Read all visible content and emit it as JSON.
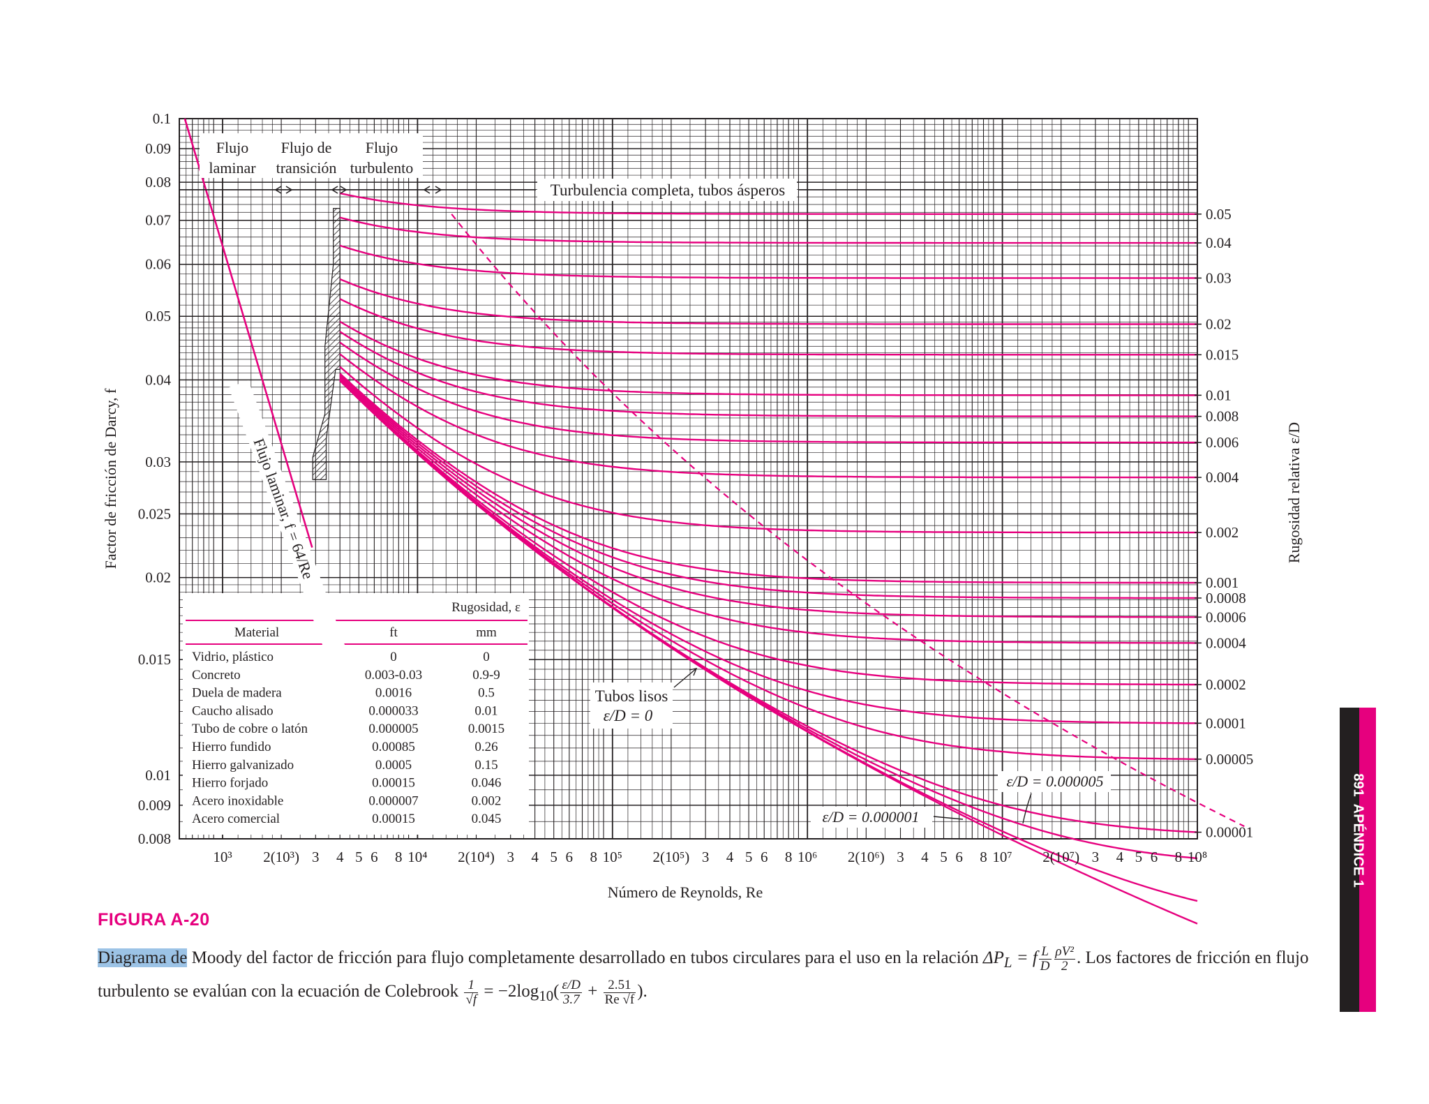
{
  "chart_data": {
    "type": "line",
    "x_scale": "log",
    "y_scale": "log",
    "xlim": [
      600,
      100000000
    ],
    "ylim": [
      0.008,
      0.1
    ],
    "grid": true,
    "xlabel": "Número de Reynolds, Re",
    "ylabel": "Factor de fricción de Darcy, f",
    "y2label": "Rugosidad relativa ε/D",
    "y_ticks": [
      "0.1",
      "0.09",
      "0.08",
      "0.07",
      "0.06",
      "0.05",
      "0.04",
      "0.03",
      "0.025",
      "0.02",
      "0.015",
      "0.01",
      "0.009",
      "0.008"
    ],
    "x_ticks": [
      {
        "v": 1000,
        "t": "10³"
      },
      {
        "v": 2000,
        "t": "2(10³)"
      },
      {
        "v": 3000,
        "t": "3"
      },
      {
        "v": 4000,
        "t": "4"
      },
      {
        "v": 5000,
        "t": "5"
      },
      {
        "v": 6000,
        "t": "6"
      },
      {
        "v": 8000,
        "t": "8"
      },
      {
        "v": 10000,
        "t": "10⁴"
      },
      {
        "v": 20000,
        "t": "2(10⁴)"
      },
      {
        "v": 30000,
        "t": "3"
      },
      {
        "v": 40000,
        "t": "4"
      },
      {
        "v": 50000,
        "t": "5"
      },
      {
        "v": 60000,
        "t": "6"
      },
      {
        "v": 80000,
        "t": "8"
      },
      {
        "v": 100000,
        "t": "10⁵"
      },
      {
        "v": 200000,
        "t": "2(10⁵)"
      },
      {
        "v": 300000,
        "t": "3"
      },
      {
        "v": 400000,
        "t": "4"
      },
      {
        "v": 500000,
        "t": "5"
      },
      {
        "v": 600000,
        "t": "6"
      },
      {
        "v": 800000,
        "t": "8"
      },
      {
        "v": 1000000,
        "t": "10⁶"
      },
      {
        "v": 2000000,
        "t": "2(10⁶)"
      },
      {
        "v": 3000000,
        "t": "3"
      },
      {
        "v": 4000000,
        "t": "4"
      },
      {
        "v": 5000000,
        "t": "5"
      },
      {
        "v": 6000000,
        "t": "6"
      },
      {
        "v": 8000000,
        "t": "8"
      },
      {
        "v": 10000000,
        "t": "10⁷"
      },
      {
        "v": 20000000,
        "t": "2(10⁷)"
      },
      {
        "v": 30000000,
        "t": "3"
      },
      {
        "v": 40000000,
        "t": "4"
      },
      {
        "v": 50000000,
        "t": "5"
      },
      {
        "v": 60000000,
        "t": "6"
      },
      {
        "v": 80000000,
        "t": "8"
      },
      {
        "v": 100000000,
        "t": "10⁸"
      }
    ],
    "roughness_curves": [
      {
        "label": "0.05",
        "eD": 0.05
      },
      {
        "label": "0.04",
        "eD": 0.04
      },
      {
        "label": "0.03",
        "eD": 0.03
      },
      {
        "label": "0.02",
        "eD": 0.02
      },
      {
        "label": "0.015",
        "eD": 0.015
      },
      {
        "label": "0.01",
        "eD": 0.01
      },
      {
        "label": "0.008",
        "eD": 0.008
      },
      {
        "label": "0.006",
        "eD": 0.006
      },
      {
        "label": "0.004",
        "eD": 0.004
      },
      {
        "label": "0.002",
        "eD": 0.002
      },
      {
        "label": "0.001",
        "eD": 0.001
      },
      {
        "label": "0.0008",
        "eD": 0.0008
      },
      {
        "label": "0.0006",
        "eD": 0.0006
      },
      {
        "label": "0.0004",
        "eD": 0.0004
      },
      {
        "label": "0.0002",
        "eD": 0.0002
      },
      {
        "label": "0.0001",
        "eD": 0.0001
      },
      {
        "label": "0.00005",
        "eD": 5e-05
      },
      {
        "label": "0.00001",
        "eD": 1e-05
      }
    ],
    "extra_curves": [
      {
        "eD": 5e-06
      },
      {
        "eD": 1e-06
      },
      {
        "eD": 0
      }
    ],
    "laminar": {
      "formula": "f = 64/Re",
      "label": "Flujo laminar, f = 64/Re"
    },
    "regions": {
      "laminar": [
        "Flujo",
        "laminar"
      ],
      "transition": [
        "Flujo de",
        "transición"
      ],
      "turbulent": [
        "Flujo",
        "turbulento"
      ]
    },
    "annotations": {
      "complete_turbulence": "Turbulencia completa, tubos ásperos",
      "smooth_tubes_1": "Tubos lisos",
      "smooth_tubes_2": "ε/D = 0",
      "ed_5e6": "ε/D = 0.000005",
      "ed_1e6": "ε/D = 0.000001"
    },
    "table": {
      "group_header": "Rugosidad, ε",
      "columns": [
        "Material",
        "ft",
        "mm"
      ],
      "rows": [
        [
          "Vidrio, plástico",
          "0",
          "0"
        ],
        [
          "Concreto",
          "0.003-0.03",
          "0.9-9"
        ],
        [
          "Duela de madera",
          "0.0016",
          "0.5"
        ],
        [
          "Caucho alisado",
          "0.000033",
          "0.01"
        ],
        [
          "Tubo de cobre o latón",
          "0.000005",
          "0.0015"
        ],
        [
          "Hierro fundido",
          "0.00085",
          "0.26"
        ],
        [
          "Hierro galvanizado",
          "0.0005",
          "0.15"
        ],
        [
          "Hierro forjado",
          "0.00015",
          "0.046"
        ],
        [
          "Acero inoxidable",
          "0.000007",
          "0.002"
        ],
        [
          "Acero comercial",
          "0.00015",
          "0.045"
        ]
      ]
    },
    "colors": {
      "curve": "#e6007e",
      "grid": "#231f20",
      "text": "#231f20"
    }
  },
  "figure": {
    "label": "FIGURA A-20",
    "caption_highlight": "Diagrama de",
    "caption_1": " Moody del factor de fricción para flujo completamente desarrollado en tubos circulares para el uso en la relación ",
    "caption_eq1_a": "ΔP",
    "caption_eq1_sub": "L",
    "caption_eq1_b": " = f",
    "caption_eq1_frac1_num": "L",
    "caption_eq1_frac1_den": "D",
    "caption_eq1_frac2_num": "ρV²",
    "caption_eq1_frac2_den": "2",
    "caption_2": ". Los factores de fricción en flujo turbulento se evalúan con la ecuación de Colebrook ",
    "caption_eq2_frac1_num": "1",
    "caption_eq2_frac1_den": "√f",
    "caption_eq2_mid": " = −2log",
    "caption_eq2_sub": "10",
    "caption_eq2_open": "(",
    "caption_eq2_frac2_num": "ε/D",
    "caption_eq2_frac2_den": "3.7",
    "caption_eq2_plus": " + ",
    "caption_eq2_frac3_num": "2.51",
    "caption_eq2_frac3_den": "Re √f",
    "caption_eq2_close": ").",
    "side_page": "891",
    "side_text": "APÉNDICE 1"
  }
}
